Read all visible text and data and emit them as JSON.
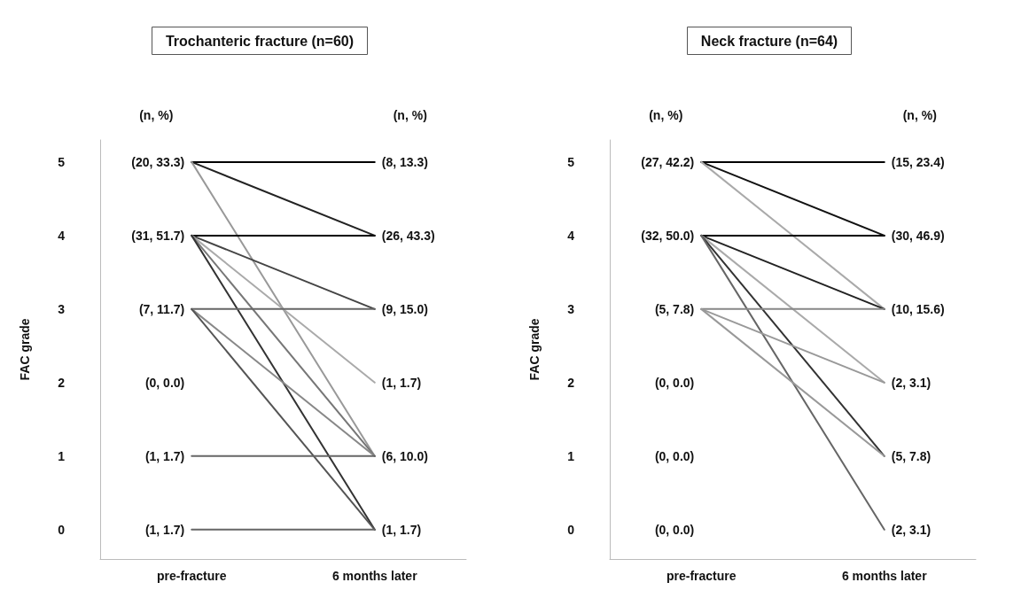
{
  "chart_data": [
    {
      "type": "line",
      "title": "Trochanteric fracture (n=60)",
      "ylabel": "FAC grade",
      "categories": [
        "pre-fracture",
        "6 months later"
      ],
      "ylim": [
        -0.4,
        5.3
      ],
      "yticks": [
        0,
        1,
        2,
        3,
        4,
        5
      ],
      "grid": false,
      "marker": "none",
      "line_style": "solid",
      "tick_labels": "xy",
      "series": [
        {
          "color": "#000000",
          "values": [
            5,
            5
          ]
        },
        {
          "color": "#222222",
          "values": [
            5,
            4
          ]
        },
        {
          "color": "#999999",
          "values": [
            5,
            1
          ]
        },
        {
          "color": "#000000",
          "values": [
            4,
            4
          ]
        },
        {
          "color": "#444444",
          "values": [
            4,
            3
          ]
        },
        {
          "color": "#aaaaaa",
          "values": [
            4,
            2
          ]
        },
        {
          "color": "#777777",
          "values": [
            4,
            1
          ]
        },
        {
          "color": "#333333",
          "values": [
            4,
            0
          ]
        },
        {
          "color": "#666666",
          "values": [
            3,
            3
          ]
        },
        {
          "color": "#888888",
          "values": [
            3,
            1
          ]
        },
        {
          "color": "#555555",
          "values": [
            3,
            0
          ]
        },
        {
          "color": "#666666",
          "values": [
            1,
            1
          ]
        },
        {
          "color": "#666666",
          "values": [
            0,
            0
          ]
        }
      ],
      "annotations": [
        "(n, %)",
        "(n, %)",
        {
          "text": "(20, 33.3)",
          "x": "pre-fracture",
          "y": 5
        },
        {
          "text": "(31, 51.7)",
          "x": "pre-fracture",
          "y": 4
        },
        {
          "text": "(7, 11.7)",
          "x": "pre-fracture",
          "y": 3
        },
        "(0, 0.0)",
        {
          "text": "(1, 1.7)",
          "x": "pre-fracture",
          "y": 1
        },
        {
          "text": "(1, 1.7)",
          "x": "pre-fracture",
          "y": 0
        },
        {
          "text": "(8, 13.3)",
          "x": "6 months later",
          "y": 5
        },
        {
          "text": "(26, 43.3)",
          "x": "6 months later",
          "y": 4
        },
        {
          "text": "(9, 15.0)",
          "x": "6 months later",
          "y": 3
        },
        {
          "text": "(1, 1.7)",
          "x": "6 months later",
          "y": 2
        },
        {
          "text": "(6, 10.0)",
          "x": "6 months later",
          "y": 1
        },
        {
          "text": "(1, 1.7)",
          "x": "6 months later",
          "y": 0
        }
      ]
    },
    {
      "type": "line",
      "title": "Neck fracture (n=64)",
      "ylabel": "FAC grade",
      "categories": [
        "pre-fracture",
        "6 months later"
      ],
      "ylim": [
        -0.4,
        5.3
      ],
      "yticks": [
        0,
        1,
        2,
        3,
        4,
        5
      ],
      "grid": false,
      "marker": "none",
      "line_style": "solid",
      "tick_labels": "xy",
      "series": [
        {
          "color": "#000000",
          "values": [
            5,
            5
          ]
        },
        {
          "color": "#111111",
          "values": [
            5,
            4
          ]
        },
        {
          "color": "#aaaaaa",
          "values": [
            5,
            3
          ]
        },
        {
          "color": "#000000",
          "values": [
            4,
            4
          ]
        },
        {
          "color": "#222222",
          "values": [
            4,
            3
          ]
        },
        {
          "color": "#aaaaaa",
          "values": [
            4,
            2
          ]
        },
        {
          "color": "#333333",
          "values": [
            4,
            1
          ]
        },
        {
          "color": "#666666",
          "values": [
            4,
            0
          ]
        },
        {
          "color": "#888888",
          "values": [
            3,
            3
          ]
        },
        {
          "color": "#999999",
          "values": [
            3,
            2
          ]
        },
        {
          "color": "#999999",
          "values": [
            3,
            1
          ]
        }
      ],
      "annotations": [
        "(n, %)",
        "(n, %)",
        {
          "text": "(27, 42.2)",
          "x": "pre-fracture",
          "y": 5
        },
        {
          "text": "(32, 50.0)",
          "x": "pre-fracture",
          "y": 4
        },
        {
          "text": "(5, 7.8)",
          "x": "pre-fracture",
          "y": 3
        },
        "(0, 0.0)",
        "(0, 0.0)",
        "(0, 0.0)",
        {
          "text": "(15, 23.4)",
          "x": "6 months later",
          "y": 5
        },
        {
          "text": "(30, 46.9)",
          "x": "6 months later",
          "y": 4
        },
        {
          "text": "(10, 15.6)",
          "x": "6 months later",
          "y": 3
        },
        {
          "text": "(2, 3.1)",
          "x": "6 months later",
          "y": 2
        },
        {
          "text": "(5, 7.8)",
          "x": "6 months later",
          "y": 1
        },
        {
          "text": "(2, 3.1)",
          "x": "6 months later",
          "y": 0
        }
      ]
    }
  ]
}
